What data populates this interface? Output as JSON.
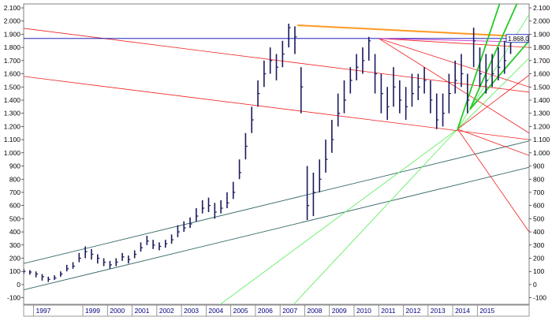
{
  "chart_data": {
    "type": "bar",
    "subtype": "ohlc",
    "title": "",
    "xlabel": "",
    "ylabel": "",
    "ylim": [
      -150,
      2130
    ],
    "xlim": [
      1996.6,
      2017.1
    ],
    "y_ticks": [
      -100,
      0,
      100,
      200,
      300,
      400,
      500,
      600,
      700,
      800,
      900,
      1000,
      1100,
      1200,
      1300,
      1400,
      1500,
      1600,
      1700,
      1800,
      1900,
      2000,
      2100
    ],
    "y_tick_labels": [
      "-100",
      "0",
      "100",
      "200",
      "300",
      "400",
      "500",
      "600",
      "700",
      "800",
      "900",
      "1.000",
      "1.100",
      "1.200",
      "1.300",
      "1.400",
      "1.500",
      "1.600",
      "1.700",
      "1.800",
      "1.900",
      "2.000",
      "2.100"
    ],
    "x_tick_labels": [
      "1997",
      "1999",
      "2000",
      "2001",
      "2002",
      "2003",
      "2004",
      "2005",
      "2006",
      "2007",
      "2008",
      "2009",
      "2010",
      "2011",
      "2012",
      "2013",
      "2014",
      "2015"
    ],
    "x_tick_years": [
      1997,
      1999,
      2000,
      2001,
      2002,
      2003,
      2004,
      2005,
      2006,
      2007,
      2008,
      2009,
      2010,
      2011,
      2012,
      2013,
      2014,
      2015
    ],
    "grid": false,
    "legend": "none",
    "last_price_label": "1.868,0",
    "last_price": 1868,
    "colors": {
      "bars": "#1a1a5e",
      "red_lines": "#ee2222",
      "light_green": "#66ee66",
      "bright_green": "#22cc22",
      "orange": "#ff9922",
      "navy": "#0000aa",
      "magenta": "#cc33cc",
      "channel": "#336666",
      "axis_text": "#000080",
      "page_bg": "#ffffff"
    },
    "series": [
      {
        "type": "ohlc",
        "x": [
          1996.6,
          1996.85,
          1997.1,
          1997.35,
          1997.6,
          1997.85,
          1998.1,
          1998.35,
          1998.6,
          1998.85,
          1999.1,
          1999.35,
          1999.6,
          1999.85,
          2000.1,
          2000.35,
          2000.6,
          2000.85,
          2001.1,
          2001.35,
          2001.6,
          2001.85,
          2002.1,
          2002.35,
          2002.6,
          2002.85,
          2003.1,
          2003.35,
          2003.6,
          2003.85,
          2004.1,
          2004.35,
          2004.6,
          2004.85,
          2005.1,
          2005.35,
          2005.6,
          2005.85,
          2006.1,
          2006.35,
          2006.6,
          2006.85,
          2007.1,
          2007.35,
          2007.6,
          2007.85,
          2008.1,
          2008.35,
          2008.6,
          2008.85,
          2009.1,
          2009.35,
          2009.6,
          2009.85,
          2010.1,
          2010.35,
          2010.6,
          2010.85,
          2011.1,
          2011.35,
          2011.6,
          2011.85,
          2012.1,
          2012.35,
          2012.6,
          2012.85,
          2013.1,
          2013.35,
          2013.6,
          2013.85,
          2014.1,
          2014.35,
          2014.6,
          2014.85,
          2015.1,
          2015.35,
          2015.6,
          2015.85,
          2016.1,
          2016.35
        ],
        "close": [
          100,
          95,
          80,
          60,
          40,
          50,
          80,
          120,
          140,
          200,
          250,
          230,
          200,
          170,
          150,
          170,
          210,
          190,
          230,
          280,
          330,
          300,
          290,
          310,
          340,
          400,
          430,
          460,
          520,
          580,
          600,
          550,
          580,
          620,
          700,
          850,
          1050,
          1250,
          1450,
          1600,
          1700,
          1650,
          1750,
          1950,
          1880,
          1500,
          600,
          700,
          800,
          950,
          1100,
          1300,
          1400,
          1550,
          1650,
          1700,
          1850,
          1600,
          1450,
          1350,
          1500,
          1400,
          1350,
          1450,
          1500,
          1550,
          1400,
          1250,
          1300,
          1450,
          1550,
          1600,
          1400,
          1850,
          1600,
          1550,
          1600,
          1650,
          1700,
          1850
        ],
        "high": [
          120,
          110,
          100,
          80,
          60,
          70,
          100,
          150,
          170,
          240,
          290,
          270,
          230,
          200,
          180,
          200,
          240,
          220,
          260,
          320,
          370,
          340,
          320,
          340,
          380,
          450,
          480,
          510,
          580,
          640,
          660,
          620,
          640,
          700,
          780,
          950,
          1150,
          1350,
          1550,
          1700,
          1800,
          1750,
          1850,
          1980,
          1960,
          1650,
          900,
          850,
          950,
          1100,
          1250,
          1450,
          1550,
          1650,
          1750,
          1800,
          1880,
          1750,
          1600,
          1500,
          1650,
          1550,
          1500,
          1600,
          1600,
          1650,
          1550,
          1450,
          1450,
          1600,
          1700,
          1750,
          1600,
          1950,
          1800,
          1750,
          1750,
          1800,
          1850,
          1900
        ],
        "low": [
          80,
          75,
          55,
          30,
          20,
          35,
          60,
          100,
          120,
          170,
          200,
          190,
          160,
          140,
          120,
          140,
          180,
          160,
          200,
          250,
          300,
          270,
          260,
          280,
          310,
          360,
          400,
          430,
          480,
          540,
          550,
          500,
          540,
          580,
          650,
          800,
          950,
          1150,
          1350,
          1500,
          1600,
          1550,
          1650,
          1800,
          1750,
          1300,
          490,
          520,
          700,
          850,
          1000,
          1200,
          1300,
          1450,
          1550,
          1600,
          1700,
          1450,
          1300,
          1250,
          1350,
          1300,
          1250,
          1350,
          1400,
          1450,
          1300,
          1180,
          1200,
          1300,
          1450,
          1500,
          1300,
          1650,
          1500,
          1450,
          1500,
          1550,
          1600,
          1750
        ]
      }
    ],
    "annotations": {
      "red_lines": [
        {
          "x1": 1996.6,
          "y1": 1945,
          "x2": 2017.1,
          "y2": 1460
        },
        {
          "x1": 1996.6,
          "y1": 1580,
          "x2": 2017.1,
          "y2": 1100
        },
        {
          "x1": 2011.0,
          "y1": 1868,
          "x2": 2017.1,
          "y2": 1150
        },
        {
          "x1": 2011.0,
          "y1": 1868,
          "x2": 2017.1,
          "y2": 1500
        },
        {
          "x1": 2011.0,
          "y1": 1868,
          "x2": 2017.1,
          "y2": 1800
        },
        {
          "x1": 2014.2,
          "y1": 1180,
          "x2": 2017.1,
          "y2": 1590
        },
        {
          "x1": 2014.2,
          "y1": 1180,
          "x2": 2017.1,
          "y2": 980
        },
        {
          "x1": 2014.2,
          "y1": 1180,
          "x2": 2017.1,
          "y2": 400
        }
      ],
      "light_green_lines": [
        {
          "x1": 2004.5,
          "y1": -160,
          "x2": 2014.2,
          "y2": 1180
        },
        {
          "x1": 2007.5,
          "y1": -160,
          "x2": 2014.2,
          "y2": 1180
        },
        {
          "x1": 2014.2,
          "y1": 1180,
          "x2": 2017.1,
          "y2": 2050
        },
        {
          "x1": 2014.2,
          "y1": 1180,
          "x2": 2017.1,
          "y2": 1720
        }
      ],
      "bright_green_lines": [
        {
          "x1": 2014.2,
          "y1": 1180,
          "x2": 2015.9,
          "y2": 2130
        },
        {
          "x1": 2014.7,
          "y1": 1330,
          "x2": 2016.6,
          "y2": 2130
        },
        {
          "x1": 2014.7,
          "y1": 1330,
          "x2": 2017.1,
          "y2": 1850
        }
      ],
      "channel_lines": [
        {
          "x1": 1996.6,
          "y1": 160,
          "x2": 2017.1,
          "y2": 1090
        },
        {
          "x1": 1996.6,
          "y1": -40,
          "x2": 2017.1,
          "y2": 890
        }
      ],
      "orange_line": {
        "x1": 2007.7,
        "y1": 1968,
        "x2": 2017.1,
        "y2": 1880
      },
      "magenta_line": {
        "x1": 2011.0,
        "y1": 1868,
        "x2": 2017.1,
        "y2": 1840
      },
      "navy_hline": {
        "y": 1868
      }
    }
  }
}
